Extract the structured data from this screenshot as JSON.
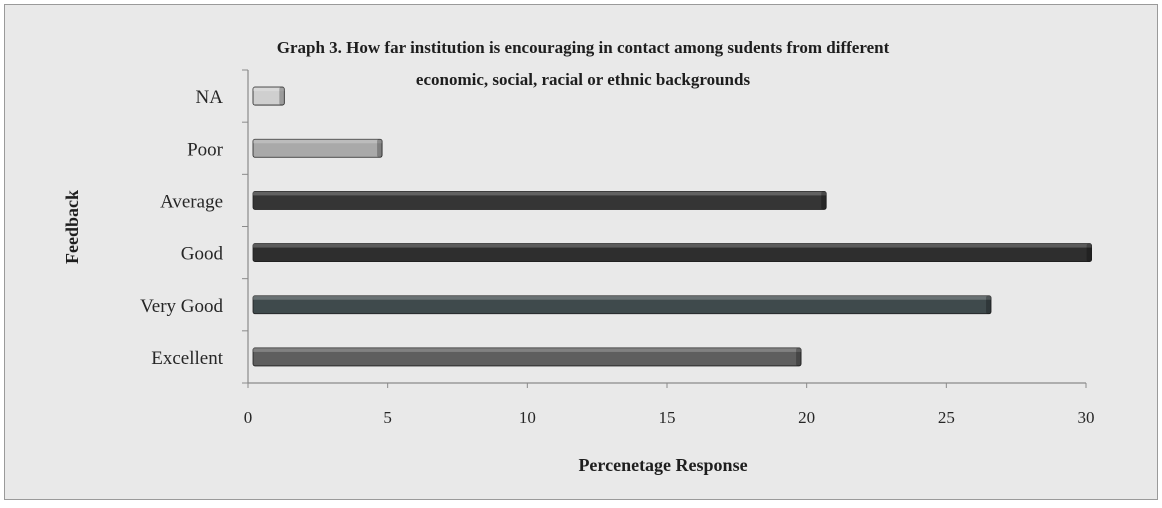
{
  "chart_data": {
    "type": "bar",
    "orientation": "horizontal",
    "title": "Graph 3. How far institution is encouraging in contact among sudents from different economic, social, racial or ethnic backgrounds",
    "title_lines": [
      "Graph 3. How far institution is encouraging in contact among sudents from different",
      "economic, social, racial or ethnic backgrounds"
    ],
    "xlabel": "Percenetage Response",
    "ylabel": "Feedback",
    "categories": [
      "Excellent",
      "Very Good",
      "Good",
      "Average",
      "Poor",
      "NA"
    ],
    "values": [
      19.8,
      26.6,
      30.2,
      20.7,
      4.8,
      1.3
    ],
    "bar_colors": [
      "#5e5e5e",
      "#3f4a4c",
      "#2e2e2e",
      "#353535",
      "#a9a9a9",
      "#cfcfcf"
    ],
    "xlim": [
      0,
      30
    ],
    "xticks": [
      "0",
      "5",
      "10",
      "15",
      "20",
      "25",
      "30"
    ],
    "grid": false,
    "legend": "none"
  }
}
